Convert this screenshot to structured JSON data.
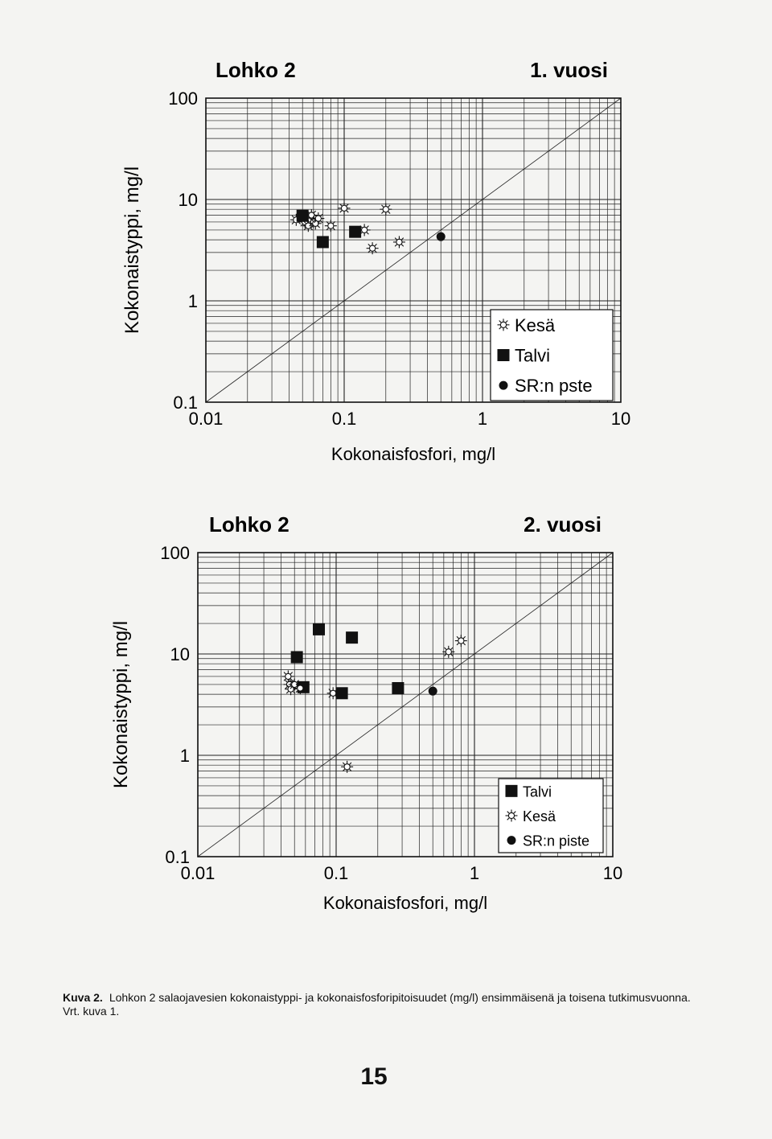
{
  "chart_data": [
    {
      "type": "scatter",
      "title": "Lohko 2",
      "subtitle": "1. vuosi",
      "xlabel": "Kokonaisfosfori, mg/l",
      "ylabel": "Kokonaistyppi, mg/l",
      "x_scale": "log",
      "y_scale": "log",
      "xlim": [
        0.01,
        10
      ],
      "ylim": [
        0.1,
        100
      ],
      "x_ticks": [
        "0.01",
        "0.1",
        "1",
        "10"
      ],
      "y_ticks": [
        "0.1",
        "1",
        "10",
        "100"
      ],
      "grid": true,
      "reference_line": "1:1 diagonal",
      "legend_position": "bottom-right",
      "series": [
        {
          "name": "Kesä",
          "marker": "sun",
          "points": [
            [
              0.045,
              6.3
            ],
            [
              0.052,
              6.0
            ],
            [
              0.055,
              5.5
            ],
            [
              0.058,
              7.0
            ],
            [
              0.06,
              6.0
            ],
            [
              0.062,
              5.8
            ],
            [
              0.065,
              6.5
            ],
            [
              0.08,
              5.5
            ],
            [
              0.1,
              8.2
            ],
            [
              0.14,
              5.0
            ],
            [
              0.16,
              3.3
            ],
            [
              0.2,
              8.0
            ],
            [
              0.25,
              3.8
            ]
          ]
        },
        {
          "name": "Talvi",
          "marker": "square",
          "points": [
            [
              0.05,
              6.9
            ],
            [
              0.07,
              3.8
            ],
            [
              0.12,
              4.8
            ]
          ]
        },
        {
          "name": "SR:n pste",
          "marker": "circle",
          "points": [
            [
              0.5,
              4.3
            ]
          ]
        }
      ],
      "legend": [
        "Kesä",
        "Talvi",
        "SR:n pste"
      ]
    },
    {
      "type": "scatter",
      "title": "Lohko 2",
      "subtitle": "2. vuosi",
      "xlabel": "Kokonaisfosfori, mg/l",
      "ylabel": "Kokonaistyppi, mg/l",
      "x_scale": "log",
      "y_scale": "log",
      "xlim": [
        0.01,
        10
      ],
      "ylim": [
        0.1,
        100
      ],
      "x_ticks": [
        "0.01",
        "0.1",
        "1",
        "10"
      ],
      "y_ticks": [
        "0.1",
        "1",
        "10",
        "100"
      ],
      "grid": true,
      "reference_line": "1:1 diagonal",
      "legend_position": "bottom-right",
      "series": [
        {
          "name": "Talvi",
          "marker": "square",
          "points": [
            [
              0.052,
              9.3
            ],
            [
              0.075,
              17.5
            ],
            [
              0.13,
              14.5
            ],
            [
              0.058,
              4.7
            ],
            [
              0.11,
              4.1
            ],
            [
              0.28,
              4.6
            ]
          ]
        },
        {
          "name": "Kesä",
          "marker": "sun",
          "points": [
            [
              0.045,
              6.0
            ],
            [
              0.046,
              5.0
            ],
            [
              0.047,
              4.5
            ],
            [
              0.05,
              5.0
            ],
            [
              0.055,
              4.6
            ],
            [
              0.095,
              4.1
            ],
            [
              0.12,
              0.77
            ],
            [
              0.65,
              10.5
            ],
            [
              0.8,
              13.5
            ]
          ]
        },
        {
          "name": "SR:n piste",
          "marker": "circle",
          "points": [
            [
              0.5,
              4.3
            ]
          ]
        }
      ],
      "legend": [
        "Talvi",
        "Kesä",
        "SR:n piste"
      ]
    }
  ],
  "caption": {
    "label": "Kuva 2.",
    "text": "Lohkon 2 salaojavesien kokonaistyppi- ja kokonaisfosforipitoisuudet (mg/l) ensimmäisenä ja toisena tutkimusvuonna. Vrt. kuva 1."
  },
  "page_number": "15"
}
